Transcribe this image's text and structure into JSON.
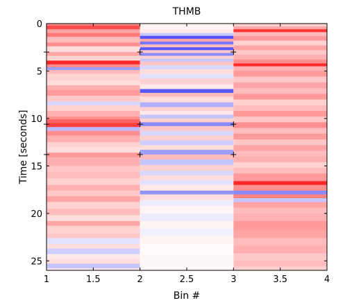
{
  "chart_data": {
    "type": "heatmap",
    "title": "THMB",
    "xlabel": "Bin #",
    "ylabel": "Time [seconds]",
    "xlim": [
      1,
      4
    ],
    "ylim": [
      0,
      26
    ],
    "y_inverted": true,
    "x_ticks": [
      "1",
      "1.5",
      "2",
      "2.5",
      "3",
      "3.5",
      "4"
    ],
    "x_tick_values": [
      1,
      1.5,
      2,
      2.5,
      3,
      3.5,
      4
    ],
    "y_ticks": [
      "0",
      "5",
      "10",
      "15",
      "20",
      "25"
    ],
    "y_tick_values": [
      0,
      5,
      10,
      15,
      20,
      25
    ],
    "bin_edges": [
      1,
      2,
      3,
      4
    ],
    "markers": {
      "times": [
        3.0,
        10.6,
        13.8
      ],
      "bins": [
        2,
        3
      ]
    },
    "colormap": {
      "negative": "#3c3cff",
      "zero": "#ffffff",
      "positive": "#ff1e1e"
    },
    "columns": [
      {
        "bin": 1,
        "bands": [
          [
            0.0,
            0.2,
            0.5
          ],
          [
            0.2,
            0.6,
            0.8
          ],
          [
            0.6,
            1.0,
            0.4
          ],
          [
            1.0,
            1.4,
            0.6
          ],
          [
            1.4,
            2.0,
            0.3
          ],
          [
            2.0,
            2.4,
            0.5
          ],
          [
            2.4,
            3.0,
            0.15
          ],
          [
            3.0,
            3.4,
            0.4
          ],
          [
            3.4,
            3.9,
            0.2
          ],
          [
            3.9,
            4.3,
            0.95
          ],
          [
            4.3,
            4.6,
            0.5
          ],
          [
            4.6,
            4.9,
            -0.5
          ],
          [
            4.9,
            5.3,
            0.3
          ],
          [
            5.3,
            6.0,
            0.2
          ],
          [
            6.0,
            6.5,
            0.15
          ],
          [
            6.5,
            7.0,
            0.35
          ],
          [
            7.0,
            7.6,
            0.45
          ],
          [
            7.6,
            8.2,
            0.25
          ],
          [
            8.2,
            8.6,
            -0.2
          ],
          [
            8.6,
            9.2,
            0.2
          ],
          [
            9.2,
            9.8,
            0.35
          ],
          [
            9.8,
            10.1,
            0.5
          ],
          [
            10.1,
            10.5,
            0.7
          ],
          [
            10.5,
            10.9,
            0.85
          ],
          [
            10.9,
            11.3,
            -0.35
          ],
          [
            11.3,
            11.8,
            0.5
          ],
          [
            11.8,
            12.5,
            0.35
          ],
          [
            12.5,
            13.0,
            0.2
          ],
          [
            13.0,
            13.6,
            0.15
          ],
          [
            13.6,
            14.1,
            0.45
          ],
          [
            14.1,
            15.0,
            0.35
          ],
          [
            15.0,
            15.6,
            0.25
          ],
          [
            15.6,
            16.3,
            0.3
          ],
          [
            16.3,
            17.0,
            0.2
          ],
          [
            17.0,
            17.6,
            0.35
          ],
          [
            17.6,
            18.2,
            0.25
          ],
          [
            18.2,
            18.8,
            0.4
          ],
          [
            18.8,
            19.5,
            0.2
          ],
          [
            19.5,
            20.2,
            0.3
          ],
          [
            20.2,
            20.8,
            0.15
          ],
          [
            20.8,
            21.3,
            0.4
          ],
          [
            21.3,
            22.1,
            0.2
          ],
          [
            22.1,
            22.6,
            0.25
          ],
          [
            22.6,
            23.2,
            -0.15
          ],
          [
            23.2,
            23.7,
            0.15
          ],
          [
            23.7,
            24.3,
            -0.25
          ],
          [
            24.3,
            24.8,
            0.1
          ],
          [
            24.8,
            25.3,
            0.15
          ],
          [
            25.3,
            25.8,
            -0.3
          ],
          [
            25.8,
            26.0,
            0.1
          ]
        ]
      },
      {
        "bin": 2,
        "bands": [
          [
            0.0,
            0.6,
            0.05
          ],
          [
            0.6,
            1.0,
            0.1
          ],
          [
            1.0,
            1.3,
            -0.3
          ],
          [
            1.3,
            1.6,
            -0.9
          ],
          [
            1.6,
            1.9,
            0.4
          ],
          [
            1.9,
            2.2,
            -0.7
          ],
          [
            2.2,
            2.5,
            0.3
          ],
          [
            2.5,
            2.8,
            -0.85
          ],
          [
            2.8,
            3.1,
            0.25
          ],
          [
            3.1,
            3.4,
            -0.6
          ],
          [
            3.4,
            3.7,
            0.2
          ],
          [
            3.7,
            4.0,
            -0.3
          ],
          [
            4.0,
            4.4,
            0.25
          ],
          [
            4.4,
            4.8,
            -0.2
          ],
          [
            4.8,
            5.3,
            0.15
          ],
          [
            5.3,
            5.8,
            -0.15
          ],
          [
            5.8,
            6.4,
            0.2
          ],
          [
            6.4,
            6.9,
            0.1
          ],
          [
            6.9,
            7.3,
            -0.85
          ],
          [
            7.3,
            7.7,
            0.3
          ],
          [
            7.7,
            8.3,
            0.15
          ],
          [
            8.3,
            8.8,
            -0.4
          ],
          [
            8.8,
            9.2,
            0.2
          ],
          [
            9.2,
            9.6,
            0.1
          ],
          [
            9.6,
            10.0,
            -0.3
          ],
          [
            10.0,
            10.4,
            0.2
          ],
          [
            10.4,
            10.8,
            -0.6
          ],
          [
            10.8,
            11.3,
            0.25
          ],
          [
            11.3,
            11.8,
            -0.2
          ],
          [
            11.8,
            12.3,
            0.2
          ],
          [
            12.3,
            12.8,
            -0.25
          ],
          [
            12.8,
            13.3,
            0.15
          ],
          [
            13.3,
            13.8,
            -0.5
          ],
          [
            13.8,
            14.3,
            0.3
          ],
          [
            14.3,
            14.9,
            -0.3
          ],
          [
            14.9,
            15.5,
            0.2
          ],
          [
            15.5,
            16.0,
            -0.2
          ],
          [
            16.0,
            16.5,
            0.15
          ],
          [
            16.5,
            17.0,
            -0.15
          ],
          [
            17.0,
            17.6,
            0.1
          ],
          [
            17.6,
            18.0,
            -0.55
          ],
          [
            18.0,
            18.6,
            0.15
          ],
          [
            18.6,
            19.2,
            -0.1
          ],
          [
            19.2,
            20.0,
            0.05
          ],
          [
            20.0,
            20.8,
            -0.1
          ],
          [
            20.8,
            21.6,
            0.05
          ],
          [
            21.6,
            22.3,
            -0.08
          ],
          [
            22.3,
            23.2,
            0.05
          ],
          [
            23.2,
            24.0,
            0.02
          ],
          [
            24.0,
            26.0,
            0.03
          ]
        ]
      },
      {
        "bin": 3,
        "bands": [
          [
            0.0,
            0.3,
            0.2
          ],
          [
            0.3,
            0.6,
            0.4
          ],
          [
            0.6,
            0.9,
            0.9
          ],
          [
            0.9,
            1.3,
            0.3
          ],
          [
            1.3,
            1.8,
            0.45
          ],
          [
            1.8,
            2.3,
            0.2
          ],
          [
            2.3,
            2.8,
            0.4
          ],
          [
            2.8,
            3.3,
            0.25
          ],
          [
            3.3,
            3.8,
            0.35
          ],
          [
            3.8,
            4.2,
            0.5
          ],
          [
            4.2,
            4.5,
            0.95
          ],
          [
            4.5,
            5.0,
            0.35
          ],
          [
            5.0,
            5.6,
            0.45
          ],
          [
            5.6,
            6.2,
            0.25
          ],
          [
            6.2,
            6.8,
            0.4
          ],
          [
            6.8,
            7.4,
            0.3
          ],
          [
            7.4,
            8.0,
            0.45
          ],
          [
            8.0,
            8.6,
            0.2
          ],
          [
            8.6,
            9.2,
            0.3
          ],
          [
            9.2,
            9.8,
            0.45
          ],
          [
            9.8,
            10.4,
            0.25
          ],
          [
            10.4,
            11.0,
            0.5
          ],
          [
            11.0,
            11.6,
            0.3
          ],
          [
            11.6,
            12.2,
            0.45
          ],
          [
            12.2,
            12.8,
            0.25
          ],
          [
            12.8,
            13.4,
            0.4
          ],
          [
            13.4,
            14.0,
            0.3
          ],
          [
            14.0,
            14.6,
            0.35
          ],
          [
            14.6,
            15.2,
            0.2
          ],
          [
            15.2,
            15.8,
            0.3
          ],
          [
            15.8,
            16.6,
            0.45
          ],
          [
            16.6,
            17.0,
            0.95
          ],
          [
            17.0,
            17.6,
            0.5
          ],
          [
            17.6,
            18.0,
            -0.6
          ],
          [
            18.0,
            18.4,
            0.55
          ],
          [
            18.4,
            18.8,
            -0.3
          ],
          [
            18.8,
            19.4,
            0.4
          ],
          [
            19.4,
            20.0,
            0.3
          ],
          [
            20.0,
            20.8,
            0.35
          ],
          [
            20.8,
            21.8,
            0.45
          ],
          [
            21.8,
            22.6,
            0.4
          ],
          [
            22.6,
            23.4,
            0.3
          ],
          [
            23.4,
            24.2,
            0.35
          ],
          [
            24.2,
            25.0,
            0.25
          ],
          [
            25.0,
            25.6,
            0.3
          ],
          [
            25.6,
            26.0,
            0.2
          ]
        ]
      }
    ]
  }
}
